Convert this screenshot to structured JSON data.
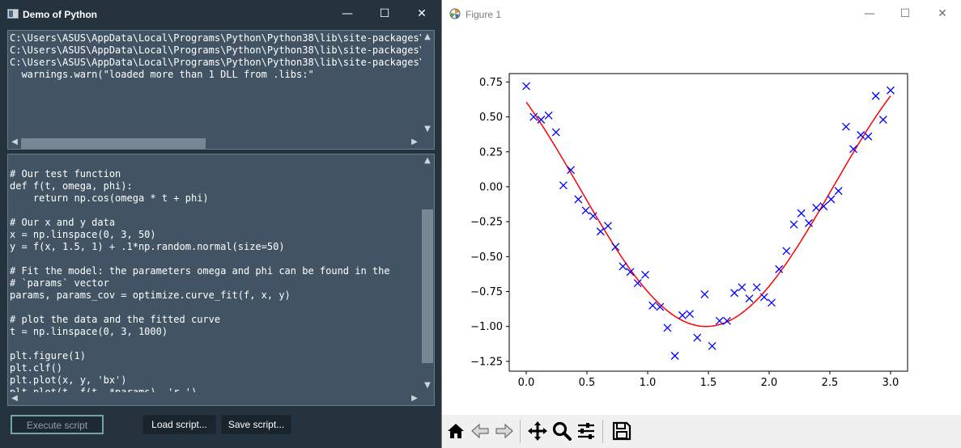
{
  "left_window": {
    "title": "Demo of Python",
    "controls": {
      "minimize": "—",
      "maximize": "☐",
      "close": "✕"
    }
  },
  "console": {
    "lines": [
      "C:\\Users\\ASUS\\AppData\\Local\\Programs\\Python\\Python38\\lib\\site-packages\\n",
      "C:\\Users\\ASUS\\AppData\\Local\\Programs\\Python\\Python38\\lib\\site-packages\\n",
      "C:\\Users\\ASUS\\AppData\\Local\\Programs\\Python\\Python38\\lib\\site-packages\\n",
      "  warnings.warn(\"loaded more than 1 DLL from .libs:\""
    ]
  },
  "code": {
    "lines": [
      "# Our test function",
      "def f(t, omega, phi):",
      "    return np.cos(omega * t + phi)",
      "",
      "# Our x and y data",
      "x = np.linspace(0, 3, 50)",
      "y = f(x, 1.5, 1) + .1*np.random.normal(size=50)",
      "",
      "# Fit the model: the parameters omega and phi can be found in the",
      "# `params` vector",
      "params, params_cov = optimize.curve_fit(f, x, y)",
      "",
      "# plot the data and the fitted curve",
      "t = np.linspace(0, 3, 1000)",
      "",
      "plt.figure(1)",
      "plt.clf()",
      "plt.plot(x, y, 'bx')",
      "plt.plot(t, f(t, *params), 'r-')"
    ]
  },
  "buttons": {
    "execute": "Execute script",
    "load": "Load script...",
    "save": "Save script..."
  },
  "figure_window": {
    "title": "Figure 1",
    "controls": {
      "minimize": "—",
      "maximize": "☐",
      "close": "✕"
    }
  },
  "toolbar": {
    "icons": [
      "home-icon",
      "back-icon",
      "forward-icon",
      "pan-icon",
      "zoom-icon",
      "configure-subplots-icon",
      "save-icon"
    ]
  },
  "chart_data": {
    "type": "scatter",
    "xlim": [
      0,
      3
    ],
    "ylim": [
      -1.32,
      0.81
    ],
    "x_ticks": [
      "0.0",
      "0.5",
      "1.0",
      "1.5",
      "2.0",
      "2.5",
      "3.0"
    ],
    "x_tick_values": [
      0,
      0.5,
      1,
      1.5,
      2,
      2.5,
      3
    ],
    "y_ticks": [
      "0.75",
      "0.50",
      "0.25",
      "0.00",
      "−0.25",
      "−0.50",
      "−0.75",
      "−1.00",
      "−1.25"
    ],
    "y_tick_values": [
      0.75,
      0.5,
      0.25,
      0,
      -0.25,
      -0.5,
      -0.75,
      -1,
      -1.25
    ],
    "grid": false,
    "series": [
      {
        "style": "markers-x",
        "color": "#0000ff",
        "x": [
          0.0,
          0.061,
          0.122,
          0.184,
          0.245,
          0.306,
          0.367,
          0.429,
          0.49,
          0.551,
          0.612,
          0.673,
          0.735,
          0.796,
          0.857,
          0.918,
          0.98,
          1.041,
          1.102,
          1.163,
          1.224,
          1.286,
          1.347,
          1.408,
          1.469,
          1.531,
          1.592,
          1.653,
          1.714,
          1.776,
          1.837,
          1.898,
          1.959,
          2.02,
          2.082,
          2.143,
          2.204,
          2.265,
          2.327,
          2.388,
          2.449,
          2.51,
          2.571,
          2.633,
          2.694,
          2.755,
          2.816,
          2.878,
          2.939,
          3.0
        ],
        "y": [
          0.72,
          0.5,
          0.48,
          0.51,
          0.39,
          0.01,
          0.12,
          -0.09,
          -0.17,
          -0.21,
          -0.32,
          -0.28,
          -0.43,
          -0.57,
          -0.61,
          -0.69,
          -0.63,
          -0.85,
          -0.86,
          -1.01,
          -1.21,
          -0.92,
          -0.91,
          -1.08,
          -0.77,
          -1.14,
          -0.96,
          -0.96,
          -0.76,
          -0.72,
          -0.8,
          -0.72,
          -0.79,
          -0.83,
          -0.59,
          -0.46,
          -0.27,
          -0.19,
          -0.26,
          -0.15,
          -0.14,
          -0.09,
          -0.03,
          0.43,
          0.27,
          0.37,
          0.36,
          0.65,
          0.48,
          0.69
        ]
      },
      {
        "style": "line",
        "color": "#ff0000",
        "function": "cos(omega * t + phi)",
        "omega": 1.5,
        "phi": 0.92,
        "x_range": [
          0,
          3
        ]
      }
    ]
  }
}
